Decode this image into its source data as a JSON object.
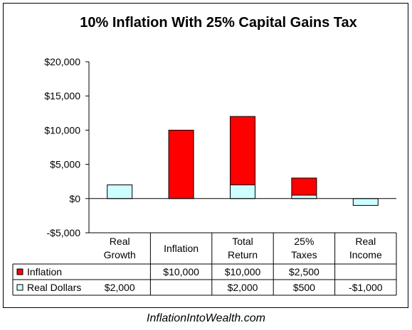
{
  "chart_data": {
    "type": "bar",
    "stacked": true,
    "title": "10% Inflation With 25% Capital Gains Tax",
    "categories": [
      [
        "Real",
        "Growth"
      ],
      [
        "Inflation"
      ],
      [
        "Total",
        "Return"
      ],
      [
        "25%",
        "Taxes"
      ],
      [
        "Real",
        "Income"
      ]
    ],
    "ylim": [
      -5000,
      20000
    ],
    "yticks": [
      -5000,
      0,
      5000,
      10000,
      15000,
      20000
    ],
    "ytick_labels": [
      "-$5,000",
      "$0",
      "$5,000",
      "$10,000",
      "$15,000",
      "$20,000"
    ],
    "grid": false,
    "legend": "data-table",
    "series": [
      {
        "name": "Real Dollars",
        "color": "#CCFFFF",
        "values": [
          2000,
          null,
          2000,
          500,
          -1000
        ],
        "labels": [
          "$2,000",
          "",
          "$2,000",
          "$500",
          "-$1,000"
        ]
      },
      {
        "name": "Inflation",
        "color": "#FF0000",
        "values": [
          null,
          10000,
          10000,
          2500,
          null
        ],
        "labels": [
          "",
          "$10,000",
          "$10,000",
          "$2,500",
          ""
        ]
      }
    ]
  },
  "footer": "InflationIntoWealth.com"
}
